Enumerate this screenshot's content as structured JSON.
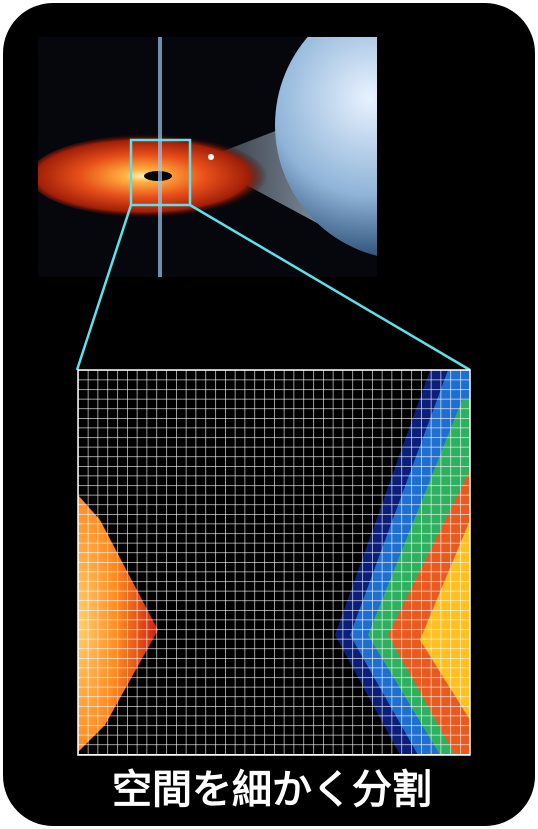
{
  "caption": "空間を細かく分割"
}
